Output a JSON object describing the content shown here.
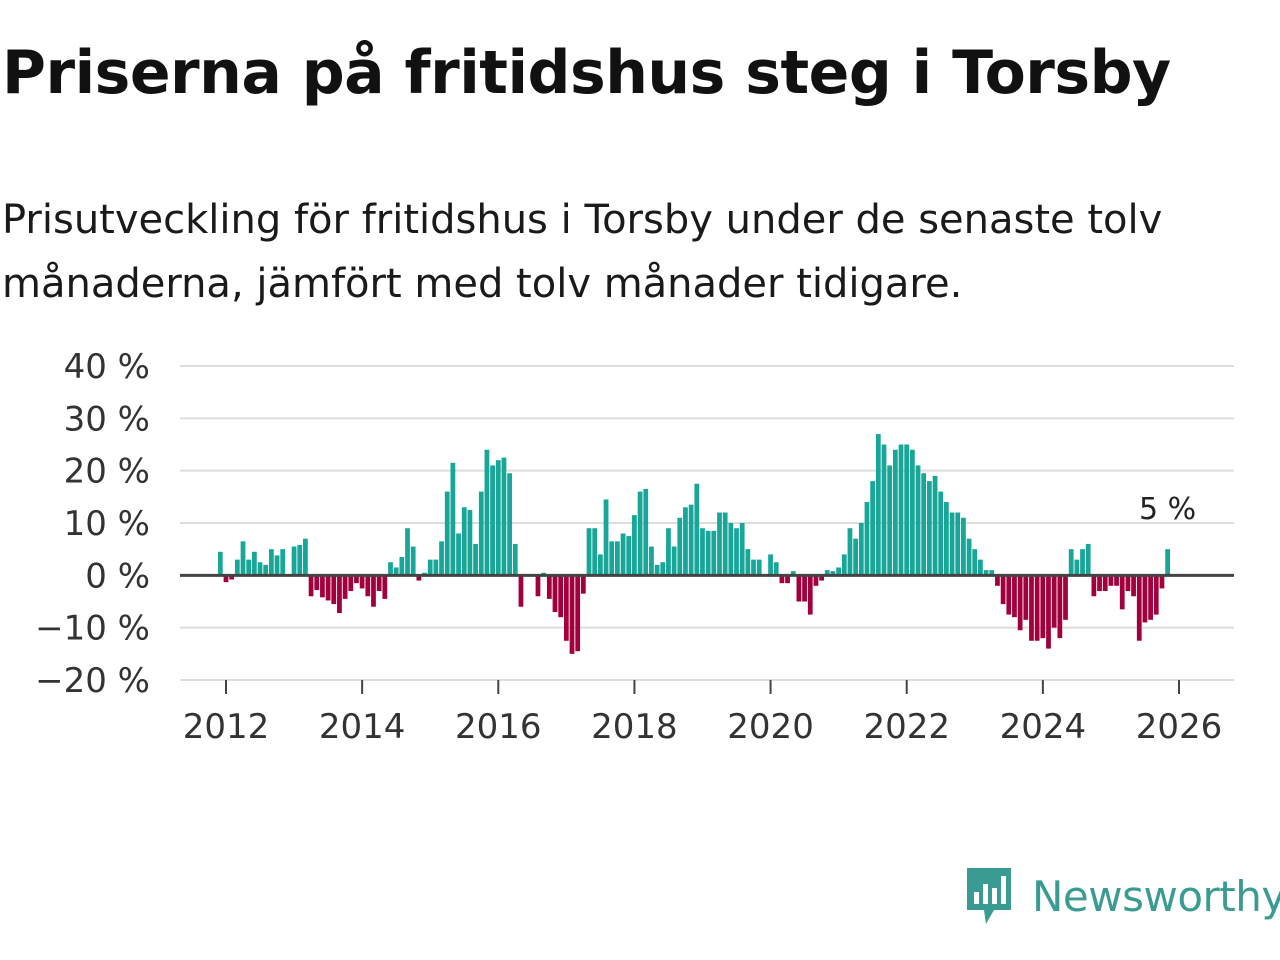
{
  "header": {
    "title": "Priserna på fritidshus steg i Torsby",
    "subtitle": "Prisutveckling för fritidshus i Torsby under de senaste tolv månaderna, jämfört med tolv månader tidigare."
  },
  "brand": {
    "name": "Newsworthy"
  },
  "colors": {
    "positive": "#17a697",
    "negative": "#a1003d",
    "grid": "#dddddd",
    "zero_line": "#444444",
    "text": "#333333"
  },
  "chart_data": {
    "type": "bar",
    "title": "Priserna på fritidshus steg i Torsby",
    "xlabel": "",
    "ylabel": "",
    "ylim": [
      -20,
      40
    ],
    "y_ticks": [
      40,
      30,
      20,
      10,
      0,
      -10,
      -20
    ],
    "y_tick_labels": [
      "40 %",
      "30 %",
      "20 %",
      "10 %",
      "0 %",
      "−10 %",
      "−20 %"
    ],
    "x_ticks": [
      2012,
      2014,
      2016,
      2018,
      2020,
      2022,
      2024,
      2026
    ],
    "x_tick_labels": [
      "2012",
      "2014",
      "2016",
      "2018",
      "2020",
      "2022",
      "2024",
      "2026"
    ],
    "x_start": 2011.75,
    "x_step": 0.08333,
    "values": [
      0,
      0,
      4.5,
      -1.3,
      -0.8,
      3,
      6.5,
      3,
      4.5,
      2.5,
      2,
      5,
      3.8,
      5,
      0,
      5.5,
      5.8,
      7,
      -4,
      -2.8,
      -4.2,
      -4.8,
      -5.5,
      -7.2,
      -4.5,
      -3,
      -1.5,
      -2.5,
      -4,
      -6,
      -3,
      -4.5,
      2.5,
      1.5,
      3.5,
      9,
      5.5,
      -1,
      0.5,
      3,
      3,
      6.5,
      16,
      21.5,
      8,
      13,
      12.5,
      6,
      16,
      24,
      21,
      22,
      22.5,
      19.5,
      6,
      -6,
      0,
      0,
      -4,
      0.5,
      -4.5,
      -7,
      -8,
      -12.5,
      -15,
      -14.5,
      -3.5,
      9,
      9,
      4,
      14.5,
      6.5,
      6.5,
      8,
      7.5,
      11.5,
      16,
      16.5,
      5.5,
      2,
      2.5,
      9,
      5.5,
      11,
      13,
      13.5,
      17.5,
      9,
      8.5,
      8.5,
      12,
      12,
      10,
      9,
      10,
      5,
      3,
      3,
      0,
      4,
      2.5,
      -1.5,
      -1.5,
      0.8,
      -5,
      -5,
      -7.5,
      -2,
      -1,
      1,
      0.8,
      1.5,
      4,
      9,
      7,
      10,
      14,
      18,
      27,
      25,
      21,
      24,
      25,
      25,
      24,
      21,
      19.5,
      18,
      19,
      16,
      14,
      12,
      12,
      11,
      7,
      5,
      3,
      1,
      1,
      -2,
      -5.5,
      -7.5,
      -8,
      -10.5,
      -8.5,
      -12.5,
      -12.5,
      -12,
      -14,
      -10,
      -12,
      -8.5,
      5,
      3,
      5,
      6,
      -4,
      -3,
      -3,
      -2,
      -2,
      -6.5,
      -3,
      -4,
      -12.5,
      -9,
      -8.5,
      -7.5,
      -2.5,
      5
    ],
    "annotation": {
      "label": "5 %",
      "value": 5
    }
  }
}
